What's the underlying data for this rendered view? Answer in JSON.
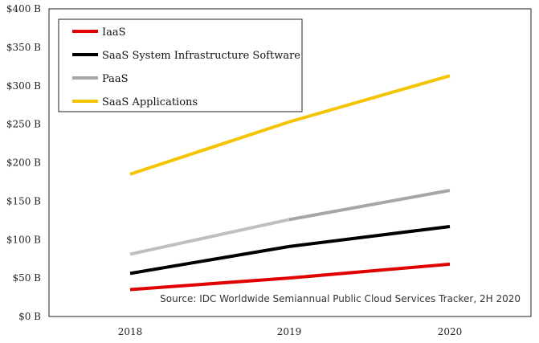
{
  "chart_data": {
    "type": "line",
    "title": "",
    "xlabel": "",
    "ylabel": "",
    "categories": [
      "2018",
      "2019",
      "2020"
    ],
    "y_ticks": [
      "$0 B",
      "$50 B",
      "$100 B",
      "$150 B",
      "$200 B",
      "$250 B",
      "$300 B",
      "$350 B",
      "$400 B"
    ],
    "ylim": [
      0,
      400
    ],
    "grid": false,
    "legend_position": "top-left",
    "series": [
      {
        "name": "IaaS",
        "values": [
          35,
          50,
          68
        ],
        "color": "#e00000"
      },
      {
        "name": "SaaS System Infrastructure Software",
        "values": [
          56,
          91,
          117
        ],
        "color": "#000000"
      },
      {
        "name": "PaaS",
        "values": [
          81,
          126,
          164
        ],
        "color": "#a6a6a6",
        "colors": [
          "#bfbfbf",
          "#a6a6a6"
        ]
      },
      {
        "name": "SaaS Applications",
        "values": [
          185,
          253,
          313
        ],
        "color": "#f5c400"
      }
    ],
    "annotation": "Source:  IDC Worldwide Semiannual Public Cloud Services Tracker, 2H 2020"
  }
}
